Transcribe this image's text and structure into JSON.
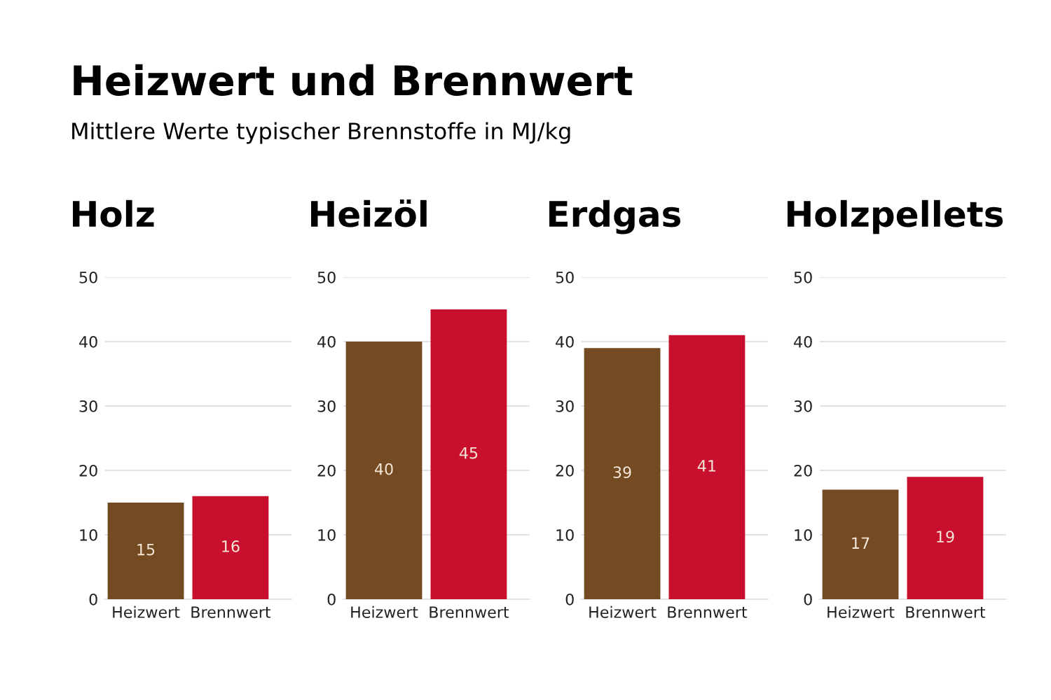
{
  "chart_data": [
    {
      "type": "other",
      "title": "Heizwert und Brennwert",
      "subtitle": "Mittlere Werte typischer Brennstoffe in MJ/kg"
    },
    {
      "type": "bar",
      "title": "Holz",
      "categories": [
        "Heizwert",
        "Brennwert"
      ],
      "values": [
        15,
        16
      ],
      "colors": [
        "#744a22",
        "#c8102e"
      ],
      "ylim": [
        0,
        50
      ],
      "yticks": [
        0,
        10,
        20,
        30,
        40,
        50
      ],
      "grid": "y",
      "data_labels": true
    },
    {
      "type": "bar",
      "title": "Heizöl",
      "categories": [
        "Heizwert",
        "Brennwert"
      ],
      "values": [
        40,
        45
      ],
      "colors": [
        "#744a22",
        "#c8102e"
      ],
      "ylim": [
        0,
        50
      ],
      "yticks": [
        0,
        10,
        20,
        30,
        40,
        50
      ],
      "grid": "y",
      "data_labels": true
    },
    {
      "type": "bar",
      "title": "Erdgas",
      "categories": [
        "Heizwert",
        "Brennwert"
      ],
      "values": [
        39,
        41
      ],
      "colors": [
        "#744a22",
        "#c8102e"
      ],
      "ylim": [
        0,
        50
      ],
      "yticks": [
        0,
        10,
        20,
        30,
        40,
        50
      ],
      "grid": "y",
      "data_labels": true
    },
    {
      "type": "bar",
      "title": "Holzpellets",
      "categories": [
        "Heizwert",
        "Brennwert"
      ],
      "values": [
        17,
        19
      ],
      "colors": [
        "#744a22",
        "#c8102e"
      ],
      "ylim": [
        0,
        50
      ],
      "yticks": [
        0,
        10,
        20,
        30,
        40,
        50
      ],
      "grid": "y",
      "data_labels": true
    }
  ]
}
